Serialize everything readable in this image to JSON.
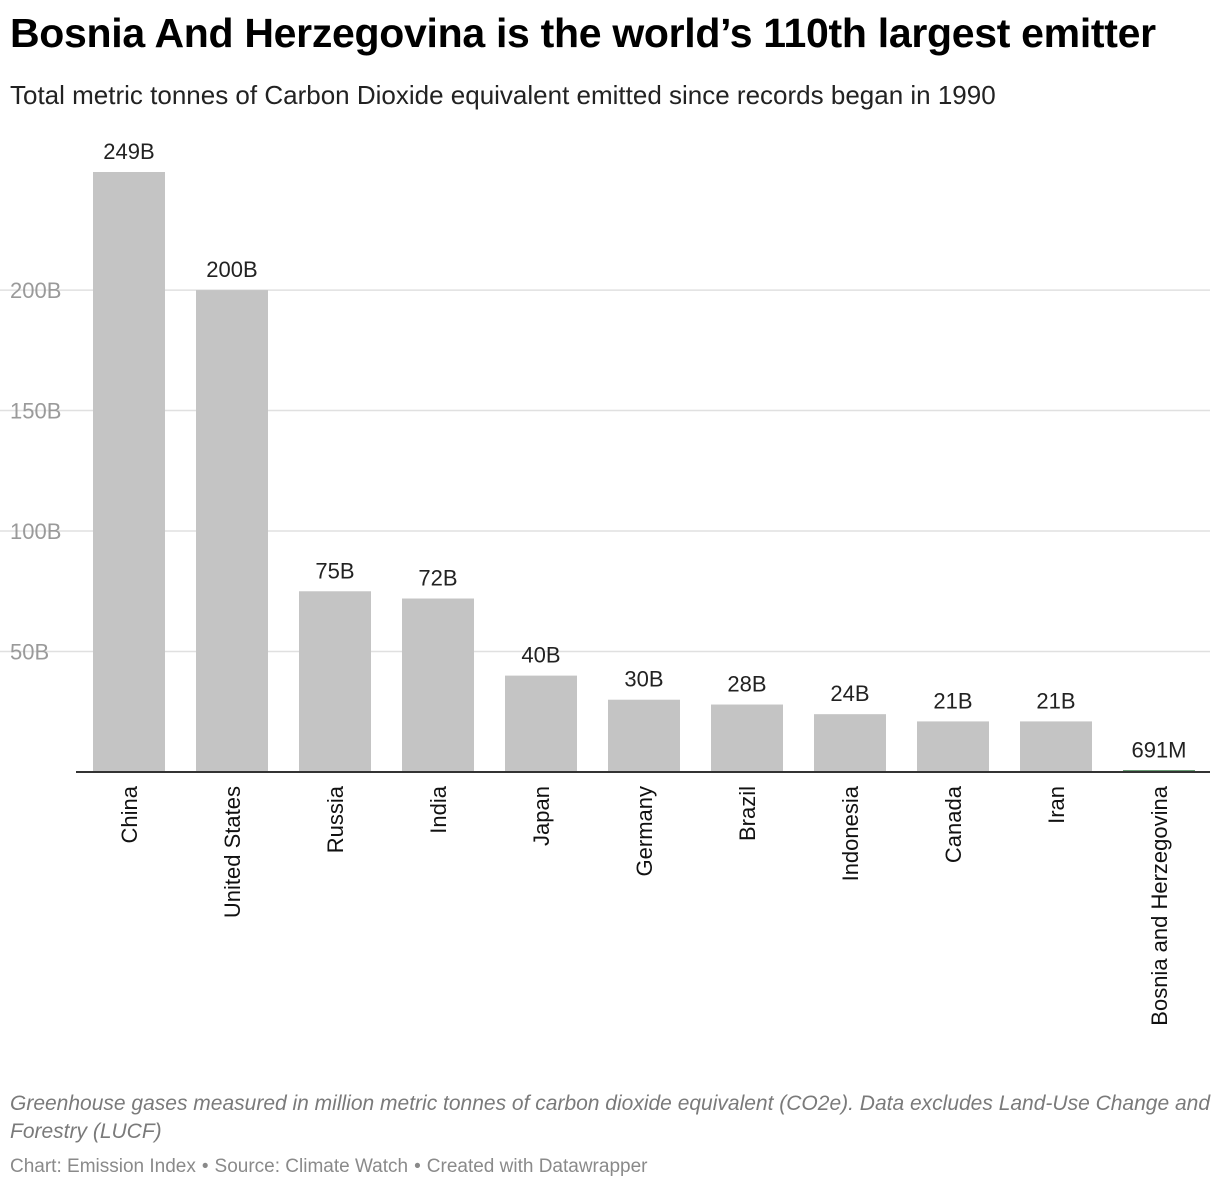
{
  "header": {
    "title": "Bosnia And Herzegovina is the world’s 110th largest emitter",
    "subtitle": "Total metric tonnes of Carbon Dioxide equivalent emitted since records began in 1990"
  },
  "footer": {
    "notes": "Greenhouse gases measured in million metric tonnes of carbon dioxide equivalent (CO2e). Data excludes Land-Use Change and Forestry (LUCF)",
    "credit_chart": "Chart: Emission Index",
    "credit_source": "Source: Climate Watch",
    "credit_tool": "Created with Datawrapper",
    "separator": "•"
  },
  "chart_data": {
    "type": "bar",
    "title": "Bosnia And Herzegovina is the world’s 110th largest emitter",
    "subtitle": "Total metric tonnes of Carbon Dioxide equivalent emitted since records began in 1990",
    "xlabel": "",
    "ylabel": "",
    "unit": "metric tonnes CO2e",
    "categories": [
      "China",
      "United States",
      "Russia",
      "India",
      "Japan",
      "Germany",
      "Brazil",
      "Indonesia",
      "Canada",
      "Iran",
      "Bosnia and Herzegovina"
    ],
    "values": [
      249000000000,
      200000000000,
      75000000000,
      72000000000,
      40000000000,
      30000000000,
      28000000000,
      24000000000,
      21000000000,
      21000000000,
      691000000
    ],
    "value_labels": [
      "249B",
      "200B",
      "75B",
      "72B",
      "40B",
      "30B",
      "28B",
      "24B",
      "21B",
      "21B",
      "691M"
    ],
    "highlight": "Bosnia and Herzegovina",
    "ylim": [
      0,
      249000000000
    ],
    "yticks": [
      50000000000,
      100000000000,
      150000000000,
      200000000000
    ],
    "ytick_labels": [
      "50B",
      "100B",
      "150B",
      "200B"
    ],
    "grid": true,
    "legend": "none",
    "colors": {
      "bar": "#c4c4c4",
      "highlight": "#1e6b2e",
      "gridline": "#e0e0e0",
      "axis": "#333333",
      "tick_label": "#9a9a9a",
      "value_label": "#222222",
      "category_label": "#111111"
    }
  }
}
